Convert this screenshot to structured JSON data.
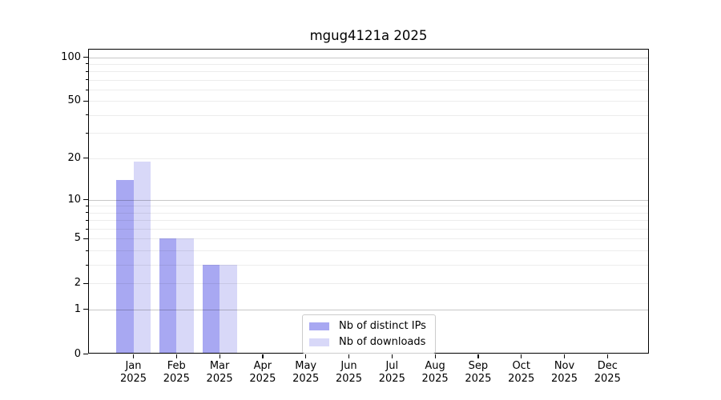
{
  "chart_data": {
    "type": "bar",
    "title": "mgug4121a 2025",
    "xlabel": "",
    "ylabel": "",
    "yscale": "log1p",
    "ylim": [
      0,
      115
    ],
    "grid": true,
    "legend_position": "lower center",
    "categories": [
      "Jan 2025",
      "Feb 2025",
      "Mar 2025",
      "Apr 2025",
      "May 2025",
      "Jun 2025",
      "Jul 2025",
      "Aug 2025",
      "Sep 2025",
      "Oct 2025",
      "Nov 2025",
      "Dec 2025"
    ],
    "x_tick_lines": [
      [
        "Jan",
        "2025"
      ],
      [
        "Feb",
        "2025"
      ],
      [
        "Mar",
        "2025"
      ],
      [
        "Apr",
        "2025"
      ],
      [
        "May",
        "2025"
      ],
      [
        "Jun",
        "2025"
      ],
      [
        "Jul",
        "2025"
      ],
      [
        "Aug",
        "2025"
      ],
      [
        "Sep",
        "2025"
      ],
      [
        "Oct",
        "2025"
      ],
      [
        "Nov",
        "2025"
      ],
      [
        "Dec",
        "2025"
      ]
    ],
    "series": [
      {
        "name": "Nb of distinct IPs",
        "color": "#a8a8f2",
        "values": [
          14,
          5,
          3,
          0,
          0,
          0,
          0,
          0,
          0,
          0,
          0,
          0
        ]
      },
      {
        "name": "Nb of downloads",
        "color": "#d8d8f8",
        "values": [
          19,
          5,
          3,
          0,
          0,
          0,
          0,
          0,
          0,
          0,
          0,
          0
        ]
      }
    ],
    "y_axis": {
      "tick_values": [
        100,
        50,
        20,
        10,
        5,
        2,
        1,
        0
      ],
      "major_gridlines": [
        1,
        10,
        100
      ],
      "minor_gridlines": [
        2,
        3,
        4,
        5,
        6,
        7,
        8,
        9,
        20,
        30,
        40,
        50,
        60,
        70,
        80,
        90
      ],
      "minor_tick_values": [
        3,
        4,
        6,
        7,
        8,
        9,
        30,
        40,
        60,
        70,
        80,
        90
      ]
    }
  },
  "colors": {
    "background": "#ffffff",
    "spine": "#000000",
    "text": "#000000",
    "legend_border": "#cccccc",
    "series_1": "#a8a8f2",
    "series_2": "#d8d8f8"
  }
}
